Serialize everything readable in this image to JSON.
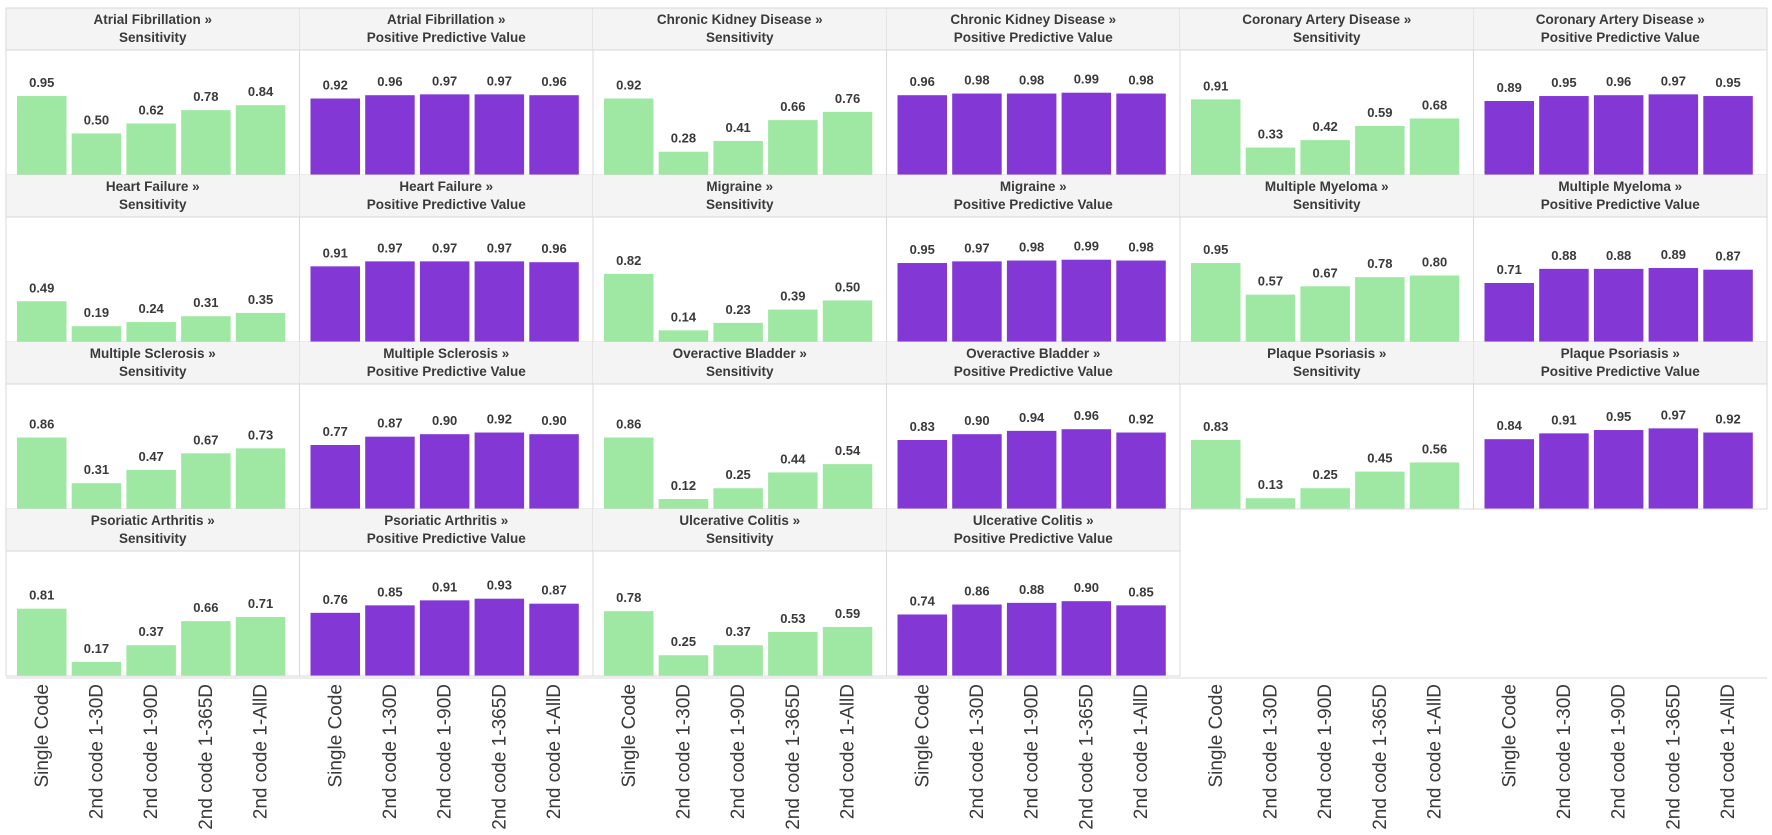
{
  "categories": [
    "Single Code",
    "2nd code 1-30D",
    "2nd code 1-90D",
    "2nd code 1-365D",
    "2nd code 1-AllD"
  ],
  "colors": {
    "sensitivity": "#9fe8a4",
    "ppv": "#8338d6",
    "header_bg": "#f4f4f4",
    "grid": "#d8d8d8",
    "text": "#3a3a3a"
  },
  "chart_data": [
    {
      "type": "bar",
      "title": "Atrial Fibrillation »",
      "subtitle": "Sensitivity",
      "values": [
        0.95,
        0.5,
        0.62,
        0.78,
        0.84
      ]
    },
    {
      "type": "bar",
      "title": "Atrial Fibrillation »",
      "subtitle": "Positive Predictive Value",
      "values": [
        0.92,
        0.96,
        0.97,
        0.97,
        0.96
      ]
    },
    {
      "type": "bar",
      "title": "Chronic Kidney Disease »",
      "subtitle": "Sensitivity",
      "values": [
        0.92,
        0.28,
        0.41,
        0.66,
        0.76
      ]
    },
    {
      "type": "bar",
      "title": "Chronic Kidney Disease »",
      "subtitle": "Positive Predictive Value",
      "values": [
        0.96,
        0.98,
        0.98,
        0.99,
        0.98
      ]
    },
    {
      "type": "bar",
      "title": "Coronary Artery Disease »",
      "subtitle": "Sensitivity",
      "values": [
        0.91,
        0.33,
        0.42,
        0.59,
        0.68
      ]
    },
    {
      "type": "bar",
      "title": "Coronary Artery Disease »",
      "subtitle": "Positive Predictive Value",
      "values": [
        0.89,
        0.95,
        0.96,
        0.97,
        0.95
      ]
    },
    {
      "type": "bar",
      "title": "Heart Failure »",
      "subtitle": "Sensitivity",
      "values": [
        0.49,
        0.19,
        0.24,
        0.31,
        0.35
      ]
    },
    {
      "type": "bar",
      "title": "Heart Failure »",
      "subtitle": "Positive Predictive Value",
      "values": [
        0.91,
        0.97,
        0.97,
        0.97,
        0.96
      ]
    },
    {
      "type": "bar",
      "title": "Migraine »",
      "subtitle": "Sensitivity",
      "values": [
        0.82,
        0.14,
        0.23,
        0.39,
        0.5
      ]
    },
    {
      "type": "bar",
      "title": "Migraine »",
      "subtitle": "Positive Predictive Value",
      "values": [
        0.95,
        0.97,
        0.98,
        0.99,
        0.98
      ]
    },
    {
      "type": "bar",
      "title": "Multiple Myeloma »",
      "subtitle": "Sensitivity",
      "values": [
        0.95,
        0.57,
        0.67,
        0.78,
        0.8
      ]
    },
    {
      "type": "bar",
      "title": "Multiple Myeloma »",
      "subtitle": "Positive Predictive Value",
      "values": [
        0.71,
        0.88,
        0.88,
        0.89,
        0.87
      ]
    },
    {
      "type": "bar",
      "title": "Multiple Sclerosis »",
      "subtitle": "Sensitivity",
      "values": [
        0.86,
        0.31,
        0.47,
        0.67,
        0.73
      ]
    },
    {
      "type": "bar",
      "title": "Multiple Sclerosis »",
      "subtitle": "Positive Predictive Value",
      "values": [
        0.77,
        0.87,
        0.9,
        0.92,
        0.9
      ]
    },
    {
      "type": "bar",
      "title": "Overactive Bladder »",
      "subtitle": "Sensitivity",
      "values": [
        0.86,
        0.12,
        0.25,
        0.44,
        0.54
      ]
    },
    {
      "type": "bar",
      "title": "Overactive Bladder »",
      "subtitle": "Positive Predictive Value",
      "values": [
        0.83,
        0.9,
        0.94,
        0.96,
        0.92
      ]
    },
    {
      "type": "bar",
      "title": "Plaque Psoriasis »",
      "subtitle": "Sensitivity",
      "values": [
        0.83,
        0.13,
        0.25,
        0.45,
        0.56
      ]
    },
    {
      "type": "bar",
      "title": "Plaque Psoriasis »",
      "subtitle": "Positive Predictive Value",
      "values": [
        0.84,
        0.91,
        0.95,
        0.97,
        0.92
      ]
    },
    {
      "type": "bar",
      "title": "Psoriatic Arthritis »",
      "subtitle": "Sensitivity",
      "values": [
        0.81,
        0.17,
        0.37,
        0.66,
        0.71
      ]
    },
    {
      "type": "bar",
      "title": "Psoriatic Arthritis »",
      "subtitle": "Positive Predictive Value",
      "values": [
        0.76,
        0.85,
        0.91,
        0.93,
        0.87
      ]
    },
    {
      "type": "bar",
      "title": "Ulcerative Colitis »",
      "subtitle": "Sensitivity",
      "values": [
        0.78,
        0.25,
        0.37,
        0.53,
        0.59
      ]
    },
    {
      "type": "bar",
      "title": "Ulcerative Colitis »",
      "subtitle": "Positive Predictive Value",
      "values": [
        0.74,
        0.86,
        0.88,
        0.9,
        0.85
      ]
    }
  ]
}
